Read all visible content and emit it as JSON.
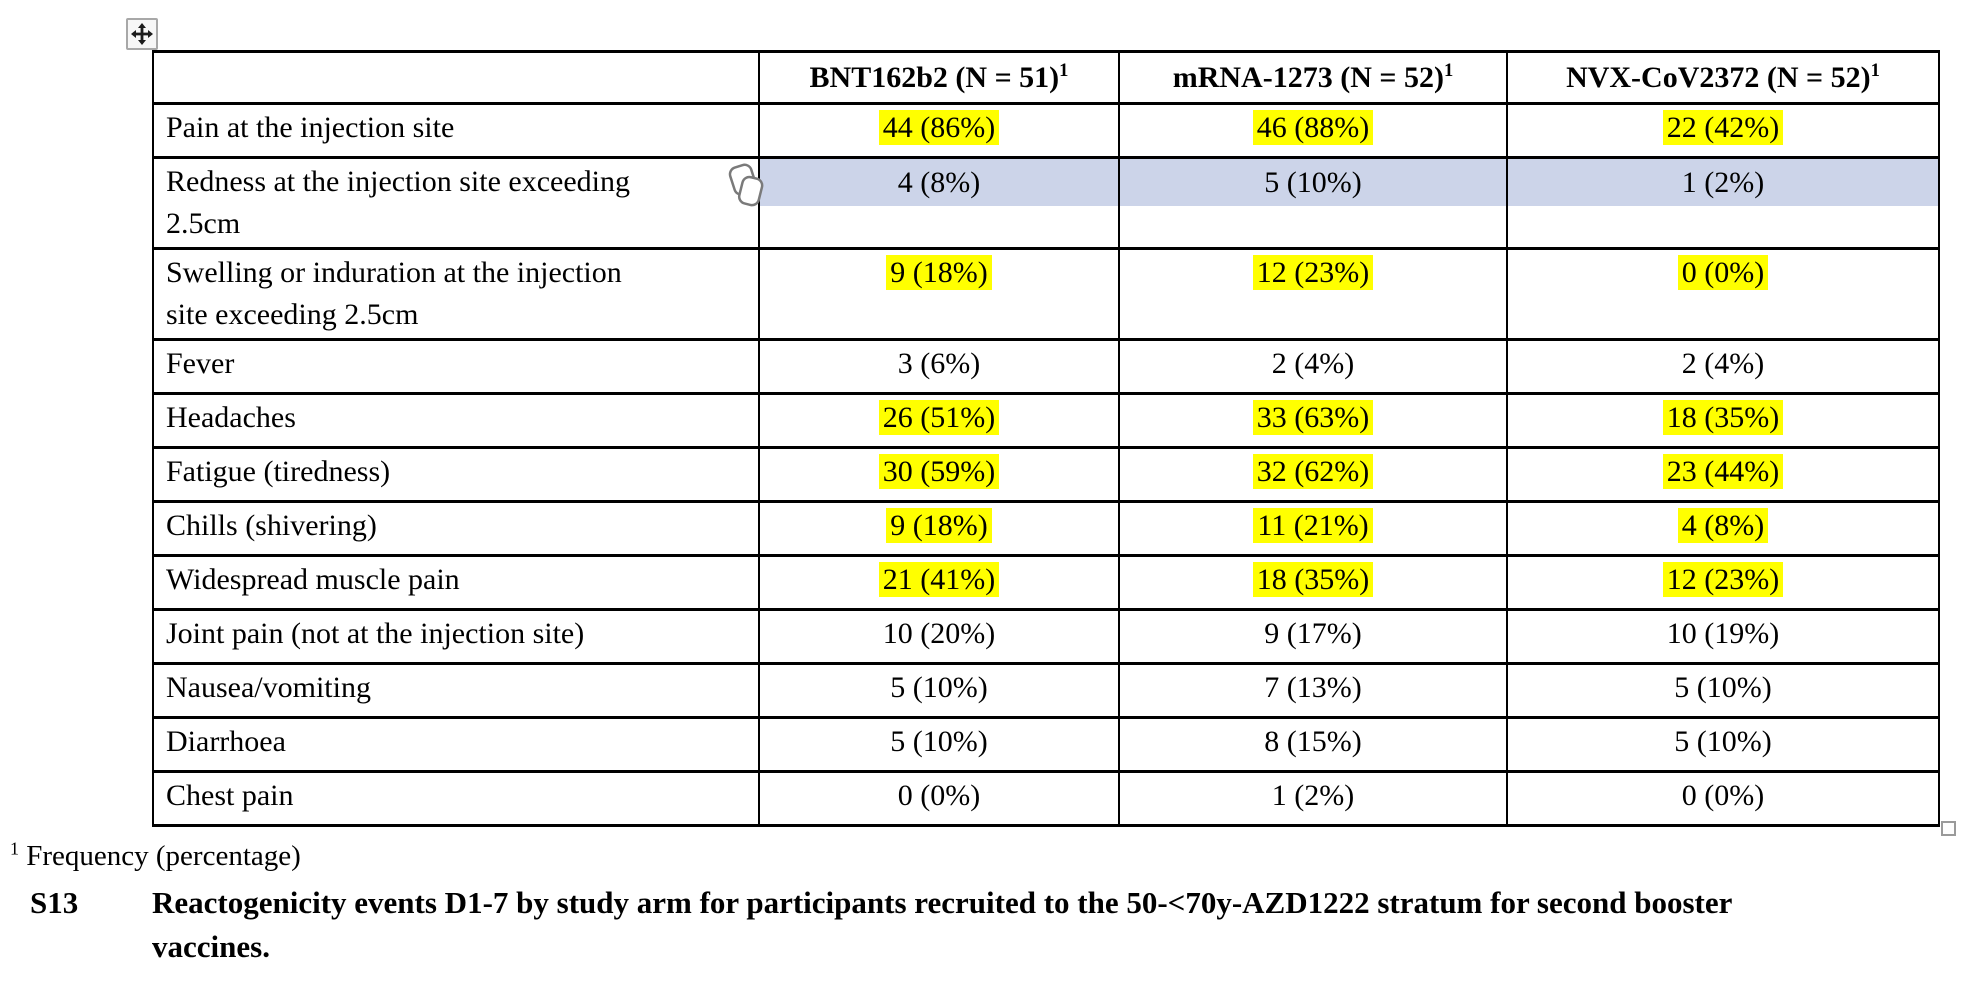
{
  "colors": {
    "highlight_yellow": "#ffff00",
    "highlight_blue": "#ccd4e9",
    "table_border": "#000000"
  },
  "table": {
    "columns": [
      {
        "text": "",
        "sup": ""
      },
      {
        "text": "BNT162b2 (N = 51)",
        "sup": "1"
      },
      {
        "text": "mRNA-1273 (N = 52)",
        "sup": "1"
      },
      {
        "text": "NVX-CoV2372 (N = 52)",
        "sup": "1"
      }
    ],
    "rows": [
      {
        "label": "Pain at the injection site",
        "values": [
          "44 (86%)",
          "46 (88%)",
          "22 (42%)"
        ],
        "highlight": "yellow"
      },
      {
        "label_lines": [
          "Redness at the injection site exceeding",
          "2.5cm"
        ],
        "values": [
          "4 (8%)",
          "5 (10%)",
          "1 (2%)"
        ],
        "highlight": "blue"
      },
      {
        "label_lines": [
          "Swelling or induration at the injection",
          "site exceeding 2.5cm"
        ],
        "values": [
          "9 (18%)",
          "12 (23%)",
          "0 (0%)"
        ],
        "highlight": "yellow"
      },
      {
        "label": "Fever",
        "values": [
          "3 (6%)",
          "2 (4%)",
          "2 (4%)"
        ],
        "highlight": "none"
      },
      {
        "label": "Headaches",
        "values": [
          "26 (51%)",
          "33 (63%)",
          "18 (35%)"
        ],
        "highlight": "yellow"
      },
      {
        "label": "Fatigue (tiredness)",
        "values": [
          "30 (59%)",
          "32 (62%)",
          "23 (44%)"
        ],
        "highlight": "yellow"
      },
      {
        "label": "Chills (shivering)",
        "values": [
          "9 (18%)",
          "11 (21%)",
          "4 (8%)"
        ],
        "highlight": "yellow"
      },
      {
        "label": "Widespread muscle pain",
        "values": [
          "21 (41%)",
          "18 (35%)",
          "12 (23%)"
        ],
        "highlight": "yellow"
      },
      {
        "label": "Joint pain (not at the injection site)",
        "values": [
          "10 (20%)",
          "9 (17%)",
          "10 (19%)"
        ],
        "highlight": "none"
      },
      {
        "label": "Nausea/vomiting",
        "values": [
          "5 (10%)",
          "7 (13%)",
          "5 (10%)"
        ],
        "highlight": "none"
      },
      {
        "label": "Diarrhoea",
        "values": [
          "5 (10%)",
          "8 (15%)",
          "5 (10%)"
        ],
        "highlight": "none"
      },
      {
        "label": "Chest pain",
        "values": [
          "0 (0%)",
          "1 (2%)",
          "0 (0%)"
        ],
        "highlight": "none"
      }
    ]
  },
  "footnote": {
    "sup": "1",
    "text": "Frequency (percentage)"
  },
  "caption": {
    "id": "S13",
    "lines": [
      "Reactogenicity events D1-7 by study arm for participants recruited to the 50-<70y-AZD1222 stratum for second booster",
      "vaccines."
    ]
  },
  "icons": {
    "move_handle": "table move handle",
    "paste_options": "paste options clipboard",
    "resize_handle": "table resize handle"
  }
}
